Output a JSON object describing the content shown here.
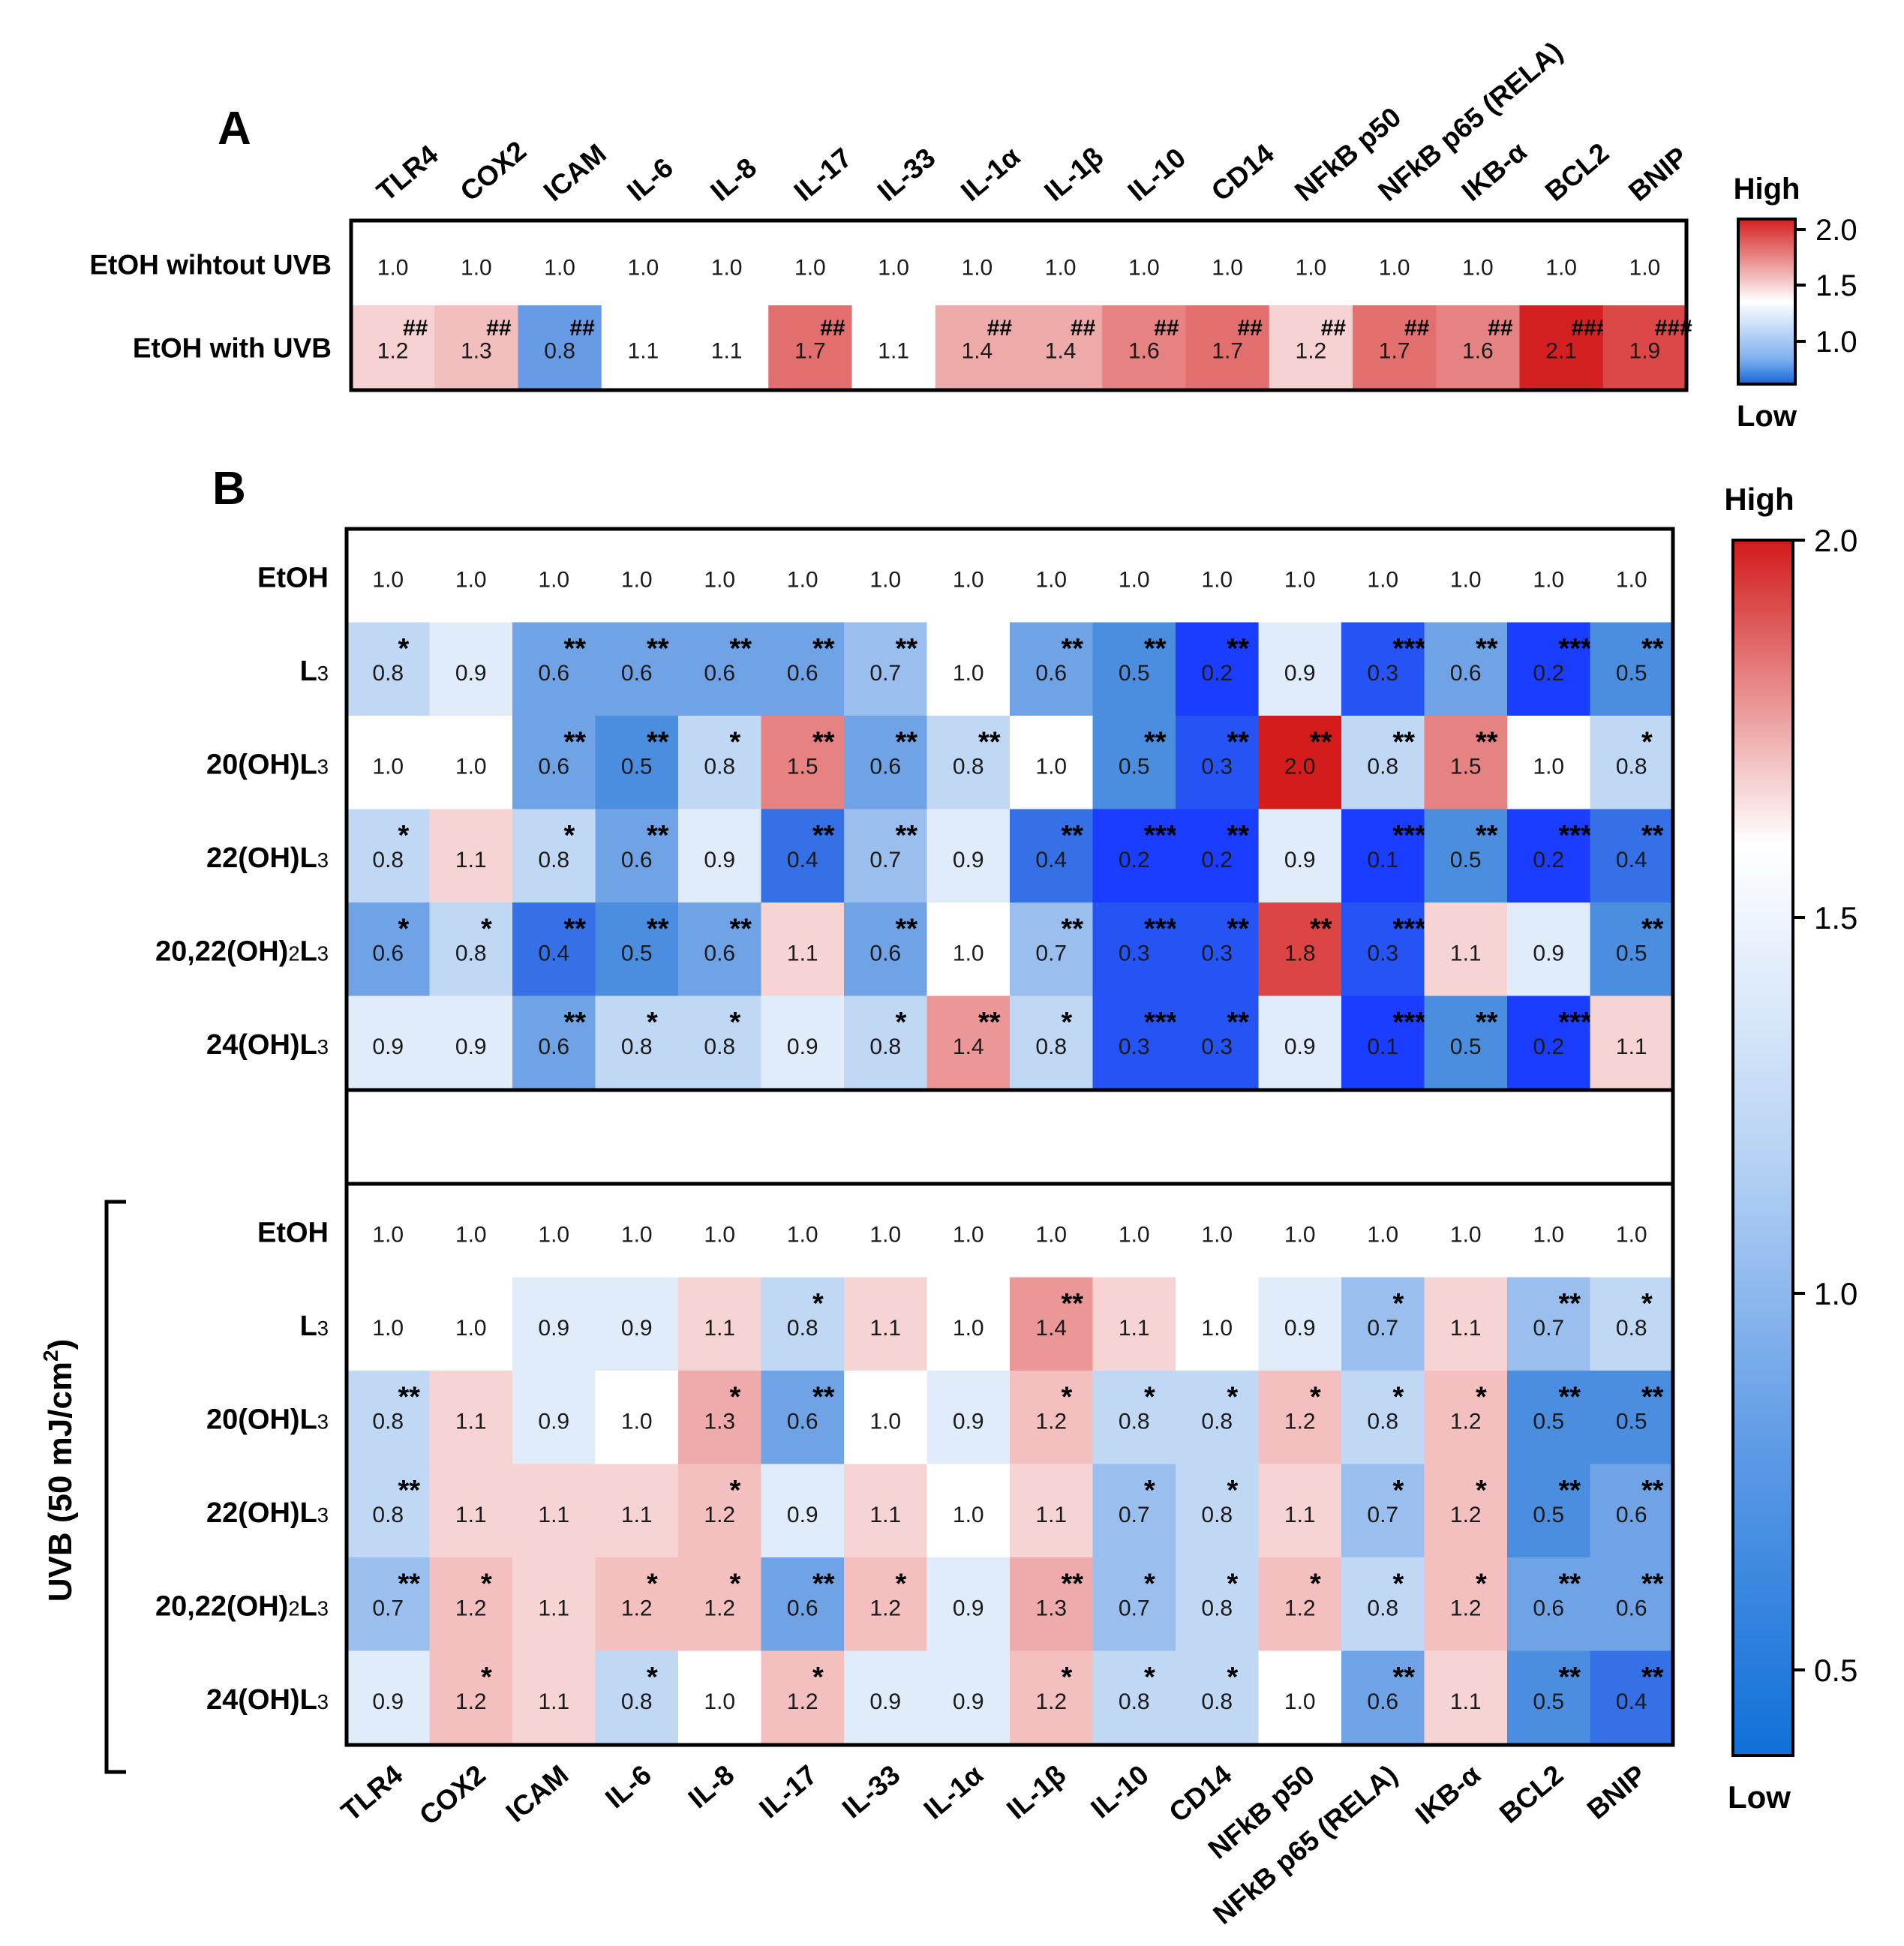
{
  "chart_data": [
    {
      "panel": "A",
      "type": "heatmap",
      "columns": [
        "TLR4",
        "COX2",
        "ICAM",
        "IL-6",
        "IL-8",
        "IL-17",
        "IL-33",
        "IL-1α",
        "IL-1β",
        "IL-10",
        "CD14",
        "NFkB p50",
        "NFkB p65 (RELA)",
        "IKB-α",
        "BCL2",
        "BNIP"
      ],
      "rows": [
        "EtOH wihtout UVB",
        "EtOH with UVB"
      ],
      "values": [
        [
          1.0,
          1.0,
          1.0,
          1.0,
          1.0,
          1.0,
          1.0,
          1.0,
          1.0,
          1.0,
          1.0,
          1.0,
          1.0,
          1.0,
          1.0,
          1.0
        ],
        [
          1.2,
          1.3,
          0.8,
          1.1,
          1.1,
          1.7,
          1.1,
          1.4,
          1.4,
          1.6,
          1.7,
          1.2,
          1.7,
          1.6,
          2.1,
          1.9
        ]
      ],
      "significance": [
        [
          "",
          "",
          "",
          "",
          "",
          "",
          "",
          "",
          "",
          "",
          "",
          "",
          "",
          "",
          "",
          ""
        ],
        [
          "##",
          "##",
          "##",
          "",
          "",
          "##",
          "",
          "##",
          "##",
          "##",
          "##",
          "##",
          "##",
          "##",
          "###",
          "###"
        ]
      ],
      "colorbar": {
        "min": 0.8,
        "max": 2.1,
        "ticks": [
          "2.0",
          "1.5",
          "1.0"
        ],
        "high_label": "High",
        "low_label": "Low",
        "low_color": "#1565d8",
        "mid_color": "#ffffff",
        "high_color": "#d42020"
      }
    },
    {
      "panel": "B",
      "type": "heatmap",
      "columns": [
        "TLR4",
        "COX2",
        "ICAM",
        "IL-6",
        "IL-8",
        "IL-17",
        "IL-33",
        "IL-1α",
        "IL-1β",
        "IL-10",
        "CD14",
        "NFkB p50",
        "NFkB p65 (RELA)",
        "IKB-α",
        "BCL2",
        "BNIP"
      ],
      "groups": [
        {
          "label": "",
          "rows": [
            "EtOH",
            "L3",
            "20(OH)L3",
            "22(OH)L3",
            "20,22(OH)2L3",
            "24(OH)L3"
          ],
          "values": [
            [
              1.0,
              1.0,
              1.0,
              1.0,
              1.0,
              1.0,
              1.0,
              1.0,
              1.0,
              1.0,
              1.0,
              1.0,
              1.0,
              1.0,
              1.0,
              1.0
            ],
            [
              0.8,
              0.9,
              0.6,
              0.6,
              0.6,
              0.6,
              0.7,
              1.0,
              0.6,
              0.5,
              0.2,
              0.9,
              0.3,
              0.6,
              0.2,
              0.5
            ],
            [
              1.0,
              1.0,
              0.6,
              0.5,
              0.8,
              1.5,
              0.6,
              0.8,
              1.0,
              0.5,
              0.3,
              2.0,
              0.8,
              1.5,
              1.0,
              0.8
            ],
            [
              0.8,
              1.1,
              0.8,
              0.6,
              0.9,
              0.4,
              0.7,
              0.9,
              0.4,
              0.2,
              0.2,
              0.9,
              0.1,
              0.5,
              0.2,
              0.4
            ],
            [
              0.6,
              0.8,
              0.4,
              0.5,
              0.6,
              1.1,
              0.6,
              1.0,
              0.7,
              0.3,
              0.3,
              1.8,
              0.3,
              1.1,
              0.9,
              0.5
            ],
            [
              0.9,
              0.9,
              0.6,
              0.8,
              0.8,
              0.9,
              0.8,
              1.4,
              0.8,
              0.3,
              0.3,
              0.9,
              0.1,
              0.5,
              0.2,
              1.1
            ]
          ],
          "significance": [
            [
              "",
              "",
              "",
              "",
              "",
              "",
              "",
              "",
              "",
              "",
              "",
              "",
              "",
              "",
              "",
              ""
            ],
            [
              "*",
              "",
              "**",
              "**",
              "**",
              "**",
              "**",
              "",
              "**",
              "**",
              "**",
              "",
              "***",
              "**",
              "***",
              "**"
            ],
            [
              "",
              "",
              "**",
              "**",
              "*",
              "**",
              "**",
              "**",
              "",
              "**",
              "**",
              "**",
              "**",
              "**",
              "",
              "*"
            ],
            [
              "*",
              "",
              "*",
              "**",
              "",
              "**",
              "**",
              "",
              "**",
              "***",
              "**",
              "",
              "***",
              "**",
              "***",
              "**"
            ],
            [
              "*",
              "*",
              "**",
              "**",
              "**",
              "",
              "**",
              "",
              "**",
              "***",
              "**",
              "**",
              "***",
              "",
              "",
              "**"
            ],
            [
              "",
              "",
              "**",
              "*",
              "*",
              "",
              "*",
              "**",
              "*",
              "***",
              "**",
              "",
              "***",
              "**",
              "***",
              ""
            ]
          ]
        },
        {
          "label": "UVB (50 mJ/cm2)",
          "rows": [
            "EtOH",
            "L3",
            "20(OH)L3",
            "22(OH)L3",
            "20,22(OH)2L3",
            "24(OH)L3"
          ],
          "values": [
            [
              1.0,
              1.0,
              1.0,
              1.0,
              1.0,
              1.0,
              1.0,
              1.0,
              1.0,
              1.0,
              1.0,
              1.0,
              1.0,
              1.0,
              1.0,
              1.0
            ],
            [
              1.0,
              1.0,
              0.9,
              0.9,
              1.1,
              0.8,
              1.1,
              1.0,
              1.4,
              1.1,
              1.0,
              0.9,
              0.7,
              1.1,
              0.7,
              0.8
            ],
            [
              0.8,
              1.1,
              0.9,
              1.0,
              1.3,
              0.6,
              1.0,
              0.9,
              1.2,
              0.8,
              0.8,
              1.2,
              0.8,
              1.2,
              0.5,
              0.5
            ],
            [
              0.8,
              1.1,
              1.1,
              1.1,
              1.2,
              0.9,
              1.1,
              1.0,
              1.1,
              0.7,
              0.8,
              1.1,
              0.7,
              1.2,
              0.5,
              0.6
            ],
            [
              0.7,
              1.2,
              1.1,
              1.2,
              1.2,
              0.6,
              1.2,
              0.9,
              1.3,
              0.7,
              0.8,
              1.2,
              0.8,
              1.2,
              0.6,
              0.6
            ],
            [
              0.9,
              1.2,
              1.1,
              0.8,
              1.0,
              1.2,
              0.9,
              0.9,
              1.2,
              0.8,
              0.8,
              1.0,
              0.6,
              1.1,
              0.5,
              0.4
            ]
          ],
          "significance": [
            [
              "",
              "",
              "",
              "",
              "",
              "",
              "",
              "",
              "",
              "",
              "",
              "",
              "",
              "",
              "",
              ""
            ],
            [
              "",
              "",
              "",
              "",
              "",
              "*",
              "",
              "",
              "**",
              "",
              "",
              "",
              "*",
              "",
              "**",
              "*"
            ],
            [
              "**",
              "",
              "",
              "",
              "*",
              "**",
              "",
              "",
              "*",
              "*",
              "*",
              "*",
              "*",
              "*",
              "**",
              "**"
            ],
            [
              "**",
              "",
              "",
              "",
              "*",
              "",
              "",
              "",
              "",
              "*",
              "*",
              "",
              "*",
              "*",
              "**",
              "**"
            ],
            [
              "**",
              "*",
              "",
              "*",
              "*",
              "**",
              "*",
              "",
              "**",
              "*",
              "*",
              "*",
              "*",
              "*",
              "**",
              "**"
            ],
            [
              "",
              "*",
              "",
              "*",
              "",
              "*",
              "",
              "",
              "*",
              "*",
              "*",
              "",
              "**",
              "",
              "**",
              "**"
            ]
          ]
        }
      ],
      "colorbar": {
        "min": 0.0,
        "max": 2.0,
        "ticks": [
          "2.0",
          "1.5",
          "1.0",
          "0.5"
        ],
        "high_label": "High",
        "low_label": "Low",
        "low_color": "#1a3dff",
        "mid_color": "#ffffff",
        "high_color": "#d41c1c"
      }
    }
  ]
}
